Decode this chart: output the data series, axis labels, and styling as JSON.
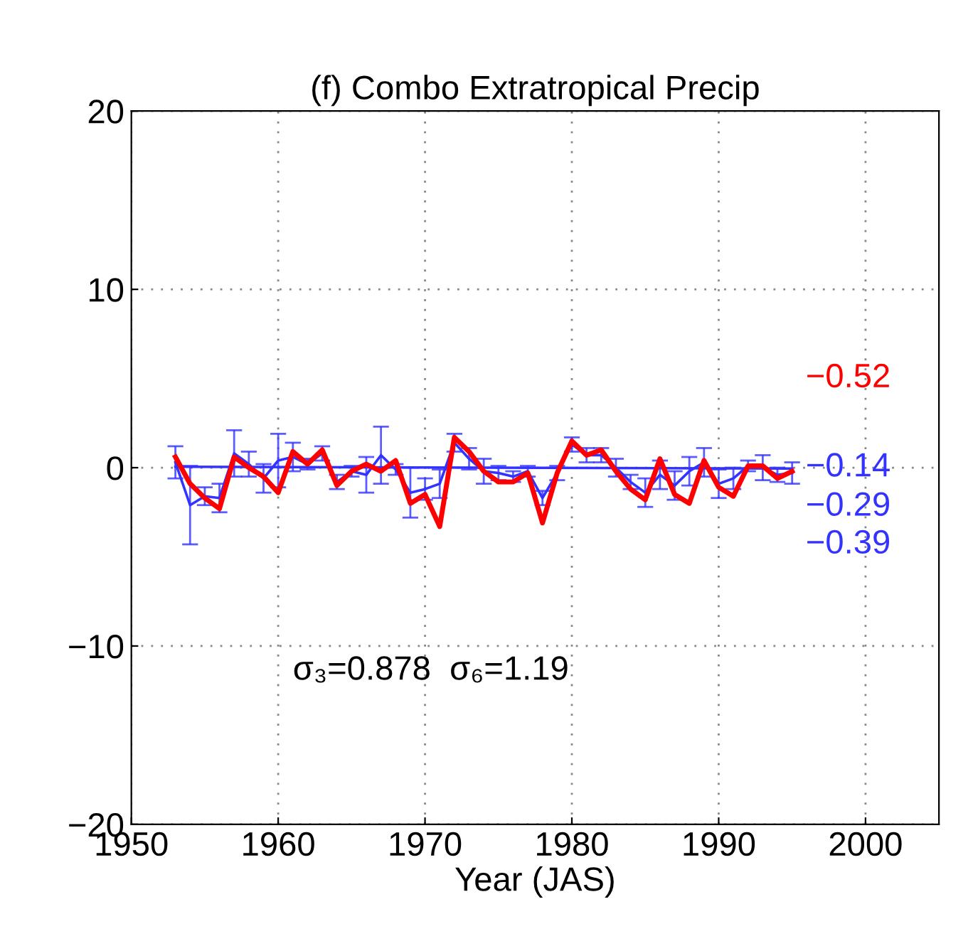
{
  "chart_data": {
    "type": "line",
    "title": "(f) Combo Extratropical Precip",
    "xlabel": "Year (JAS)",
    "x": [
      1953,
      1954,
      1955,
      1956,
      1957,
      1958,
      1959,
      1960,
      1961,
      1962,
      1963,
      1964,
      1965,
      1966,
      1967,
      1968,
      1969,
      1970,
      1971,
      1972,
      1973,
      1974,
      1975,
      1976,
      1977,
      1978,
      1979,
      1980,
      1981,
      1982,
      1983,
      1984,
      1985,
      1986,
      1987,
      1988,
      1989,
      1990,
      1991,
      1992,
      1993,
      1994,
      1995
    ],
    "series": [
      {
        "color": "#ff0000",
        "values": [
          0.6,
          -0.9,
          -1.7,
          -2.3,
          0.6,
          0.0,
          -0.5,
          -1.4,
          0.9,
          0.2,
          1.0,
          -1.0,
          -0.2,
          0.2,
          -0.2,
          0.4,
          -2.0,
          -1.5,
          -3.3,
          1.7,
          0.9,
          -0.2,
          -0.8,
          -0.8,
          -0.3,
          -3.1,
          -0.3,
          1.5,
          0.7,
          1.0,
          -0.2,
          -1.2,
          -1.8,
          0.5,
          -1.5,
          -2.0,
          0.4,
          -1.1,
          -1.6,
          0.1,
          0.1,
          -0.6,
          -0.2
        ]
      },
      {
        "color": "#3333ff",
        "values": [
          0.3,
          -2.1,
          -1.6,
          -1.7,
          0.8,
          0.2,
          -0.6,
          0.4,
          0.6,
          0.2,
          0.8,
          -0.8,
          -0.2,
          -0.4,
          0.7,
          -0.1,
          -1.4,
          -1.2,
          -0.9,
          1.4,
          0.5,
          -0.2,
          -0.3,
          -0.5,
          -0.2,
          -1.7,
          -0.3,
          1.3,
          0.7,
          0.7,
          0.0,
          -0.8,
          -1.4,
          -0.4,
          -1.0,
          -0.2,
          0.3,
          -0.9,
          -0.6,
          0.1,
          0.0,
          -0.4,
          -0.3
        ],
        "errors": [
          0.9,
          2.2,
          0.5,
          0.8,
          1.3,
          0.7,
          0.8,
          1.5,
          0.8,
          0.3,
          0.4,
          0.4,
          0.3,
          1.0,
          1.6,
          0.3,
          1.4,
          0.6,
          0.8,
          0.5,
          0.6,
          0.7,
          0.4,
          0.3,
          0.3,
          0.4,
          0.4,
          0.4,
          0.4,
          0.4,
          0.5,
          0.4,
          0.8,
          0.8,
          0.8,
          0.8,
          0.8,
          0.8,
          0.6,
          0.3,
          0.7,
          0.4,
          0.6
        ]
      },
      {
        "type": "line",
        "color": "#3333ff",
        "x": [
          1953,
          1995
        ],
        "values": [
          0.05,
          -0.05
        ]
      }
    ],
    "xlim": [
      1950,
      2005
    ],
    "xticks": [
      1950,
      1960,
      1970,
      1980,
      1990,
      2000
    ],
    "ylim": [
      -20,
      20
    ],
    "yticks": [
      {
        "value": -20,
        "label": "−20"
      },
      {
        "value": -10,
        "label": "−10"
      },
      0,
      10,
      20
    ],
    "grid": true,
    "line_style": "solid",
    "marker": "none",
    "annotations": [
      "σ₃=0.878  σ₆=1.19",
      "−0.52",
      "−0.14",
      "−0.29",
      "−0.39"
    ]
  }
}
